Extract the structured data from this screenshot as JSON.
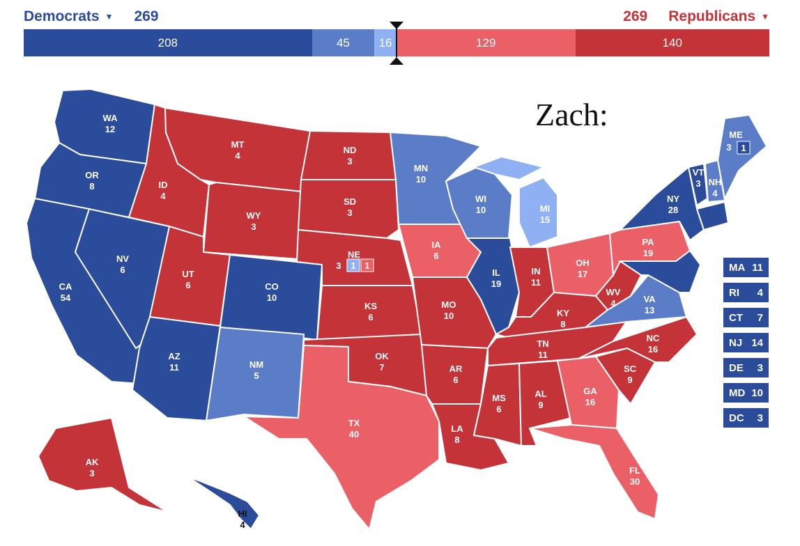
{
  "header": {
    "dem_label": "Democrats",
    "dem_total": "269",
    "rep_label": "Republicans",
    "rep_total": "269"
  },
  "colors": {
    "safe_dem": "#2b4b9b",
    "likely_dem": "#5b7dc8",
    "lean_dem": "#8fb0f2",
    "lean_rep": "#ea6066",
    "safe_rep": "#c43338"
  },
  "bar": [
    {
      "label": "208",
      "value": 208,
      "color": "#2b4b9b"
    },
    {
      "label": "45",
      "value": 45,
      "color": "#5b7dc8"
    },
    {
      "label": "16",
      "value": 16,
      "color": "#8fb0f2"
    },
    {
      "label": "129",
      "value": 129,
      "color": "#ea6066"
    },
    {
      "label": "140",
      "value": 140,
      "color": "#c43338"
    }
  ],
  "note": "Zach:",
  "states": {
    "WA": {
      "abbr": "WA",
      "ev": "12"
    },
    "OR": {
      "abbr": "OR",
      "ev": "8"
    },
    "CA": {
      "abbr": "CA",
      "ev": "54"
    },
    "NV": {
      "abbr": "NV",
      "ev": "6"
    },
    "ID": {
      "abbr": "ID",
      "ev": "4"
    },
    "MT": {
      "abbr": "MT",
      "ev": "4"
    },
    "WY": {
      "abbr": "WY",
      "ev": "3"
    },
    "UT": {
      "abbr": "UT",
      "ev": "6"
    },
    "AZ": {
      "abbr": "AZ",
      "ev": "11"
    },
    "CO": {
      "abbr": "CO",
      "ev": "10"
    },
    "NM": {
      "abbr": "NM",
      "ev": "5"
    },
    "ND": {
      "abbr": "ND",
      "ev": "3"
    },
    "SD": {
      "abbr": "SD",
      "ev": "3"
    },
    "NE": {
      "abbr": "NE",
      "ev": "3",
      "d1": "1",
      "d2": "1"
    },
    "KS": {
      "abbr": "KS",
      "ev": "6"
    },
    "OK": {
      "abbr": "OK",
      "ev": "7"
    },
    "TX": {
      "abbr": "TX",
      "ev": "40"
    },
    "MN": {
      "abbr": "MN",
      "ev": "10"
    },
    "IA": {
      "abbr": "IA",
      "ev": "6"
    },
    "MO": {
      "abbr": "MO",
      "ev": "10"
    },
    "AR": {
      "abbr": "AR",
      "ev": "6"
    },
    "LA": {
      "abbr": "LA",
      "ev": "8"
    },
    "WI": {
      "abbr": "WI",
      "ev": "10"
    },
    "IL": {
      "abbr": "IL",
      "ev": "19"
    },
    "MI": {
      "abbr": "MI",
      "ev": "15"
    },
    "IN": {
      "abbr": "IN",
      "ev": "11"
    },
    "OH": {
      "abbr": "OH",
      "ev": "17"
    },
    "KY": {
      "abbr": "KY",
      "ev": "8"
    },
    "TN": {
      "abbr": "TN",
      "ev": "11"
    },
    "MS": {
      "abbr": "MS",
      "ev": "6"
    },
    "AL": {
      "abbr": "AL",
      "ev": "9"
    },
    "GA": {
      "abbr": "GA",
      "ev": "16"
    },
    "FL": {
      "abbr": "FL",
      "ev": "30"
    },
    "SC": {
      "abbr": "SC",
      "ev": "9"
    },
    "NC": {
      "abbr": "NC",
      "ev": "16"
    },
    "VA": {
      "abbr": "VA",
      "ev": "13"
    },
    "WV": {
      "abbr": "WV",
      "ev": "4"
    },
    "PA": {
      "abbr": "PA",
      "ev": "19"
    },
    "NY": {
      "abbr": "NY",
      "ev": "28"
    },
    "VT": {
      "abbr": "VT",
      "ev": "3"
    },
    "NH": {
      "abbr": "NH",
      "ev": "4"
    },
    "ME": {
      "abbr": "ME",
      "ev": "3",
      "d1": "1"
    },
    "AK": {
      "abbr": "AK",
      "ev": "3"
    },
    "HI": {
      "abbr": "HI",
      "ev": "4"
    }
  },
  "small_states": [
    {
      "abbr": "MA",
      "ev": "11"
    },
    {
      "abbr": "RI",
      "ev": "4"
    },
    {
      "abbr": "CT",
      "ev": "7"
    },
    {
      "abbr": "NJ",
      "ev": "14"
    },
    {
      "abbr": "DE",
      "ev": "3"
    },
    {
      "abbr": "MD",
      "ev": "10"
    },
    {
      "abbr": "DC",
      "ev": "3"
    }
  ]
}
